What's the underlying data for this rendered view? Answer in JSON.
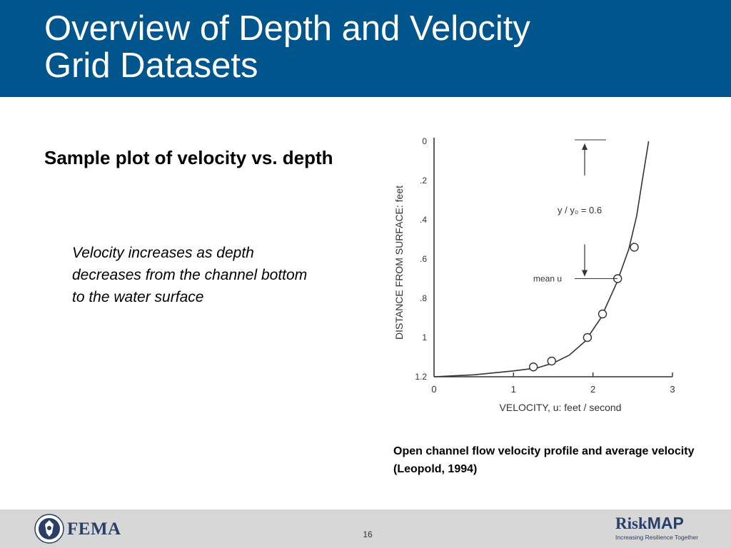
{
  "slide": {
    "title": "Overview of Depth and Velocity\nGrid Datasets",
    "subhead": "Sample plot of velocity vs. depth",
    "bullet": "Velocity increases as depth decreases from the channel bottom to the water surface",
    "caption": "Open channel flow velocity profile and average velocity (Leopold, 1994)",
    "page_number": "16"
  },
  "chart_data": {
    "type": "line",
    "xlabel": "VELOCITY, u:  feet / second",
    "ylabel": "DISTANCE FROM SURFACE:  feet",
    "x_ticks": [
      "0",
      "1",
      "2",
      "3"
    ],
    "y_ticks": [
      "0",
      ".2",
      ".4",
      ".6",
      ".8",
      "1",
      "1.2"
    ],
    "xlim": [
      0,
      3
    ],
    "ylim": [
      1.2,
      0
    ],
    "series": [
      {
        "curve": [
          [
            0,
            1.2
          ],
          [
            0.5,
            1.19
          ],
          [
            1.0,
            1.17
          ],
          [
            1.3,
            1.155
          ],
          [
            1.5,
            1.13
          ],
          [
            1.7,
            1.09
          ],
          [
            1.9,
            1.02
          ],
          [
            2.1,
            0.9
          ],
          [
            2.3,
            0.72
          ],
          [
            2.45,
            0.55
          ],
          [
            2.55,
            0.38
          ],
          [
            2.62,
            0.2
          ],
          [
            2.68,
            0.05
          ],
          [
            2.7,
            0
          ]
        ],
        "points": [
          [
            1.25,
            1.15
          ],
          [
            1.48,
            1.12
          ],
          [
            1.93,
            1.0
          ],
          [
            2.12,
            0.88
          ],
          [
            2.31,
            0.7
          ],
          [
            2.52,
            0.54
          ]
        ]
      }
    ],
    "annotations": {
      "ratio": "y / y₀ = 0.6",
      "mean": "mean u",
      "mean_depth": 0.7
    }
  },
  "footer": {
    "left_logo_text": "FEMA",
    "right_logo_name_a": "Risk",
    "right_logo_name_b": "MAP",
    "right_logo_tagline": "Increasing Resilience Together"
  }
}
